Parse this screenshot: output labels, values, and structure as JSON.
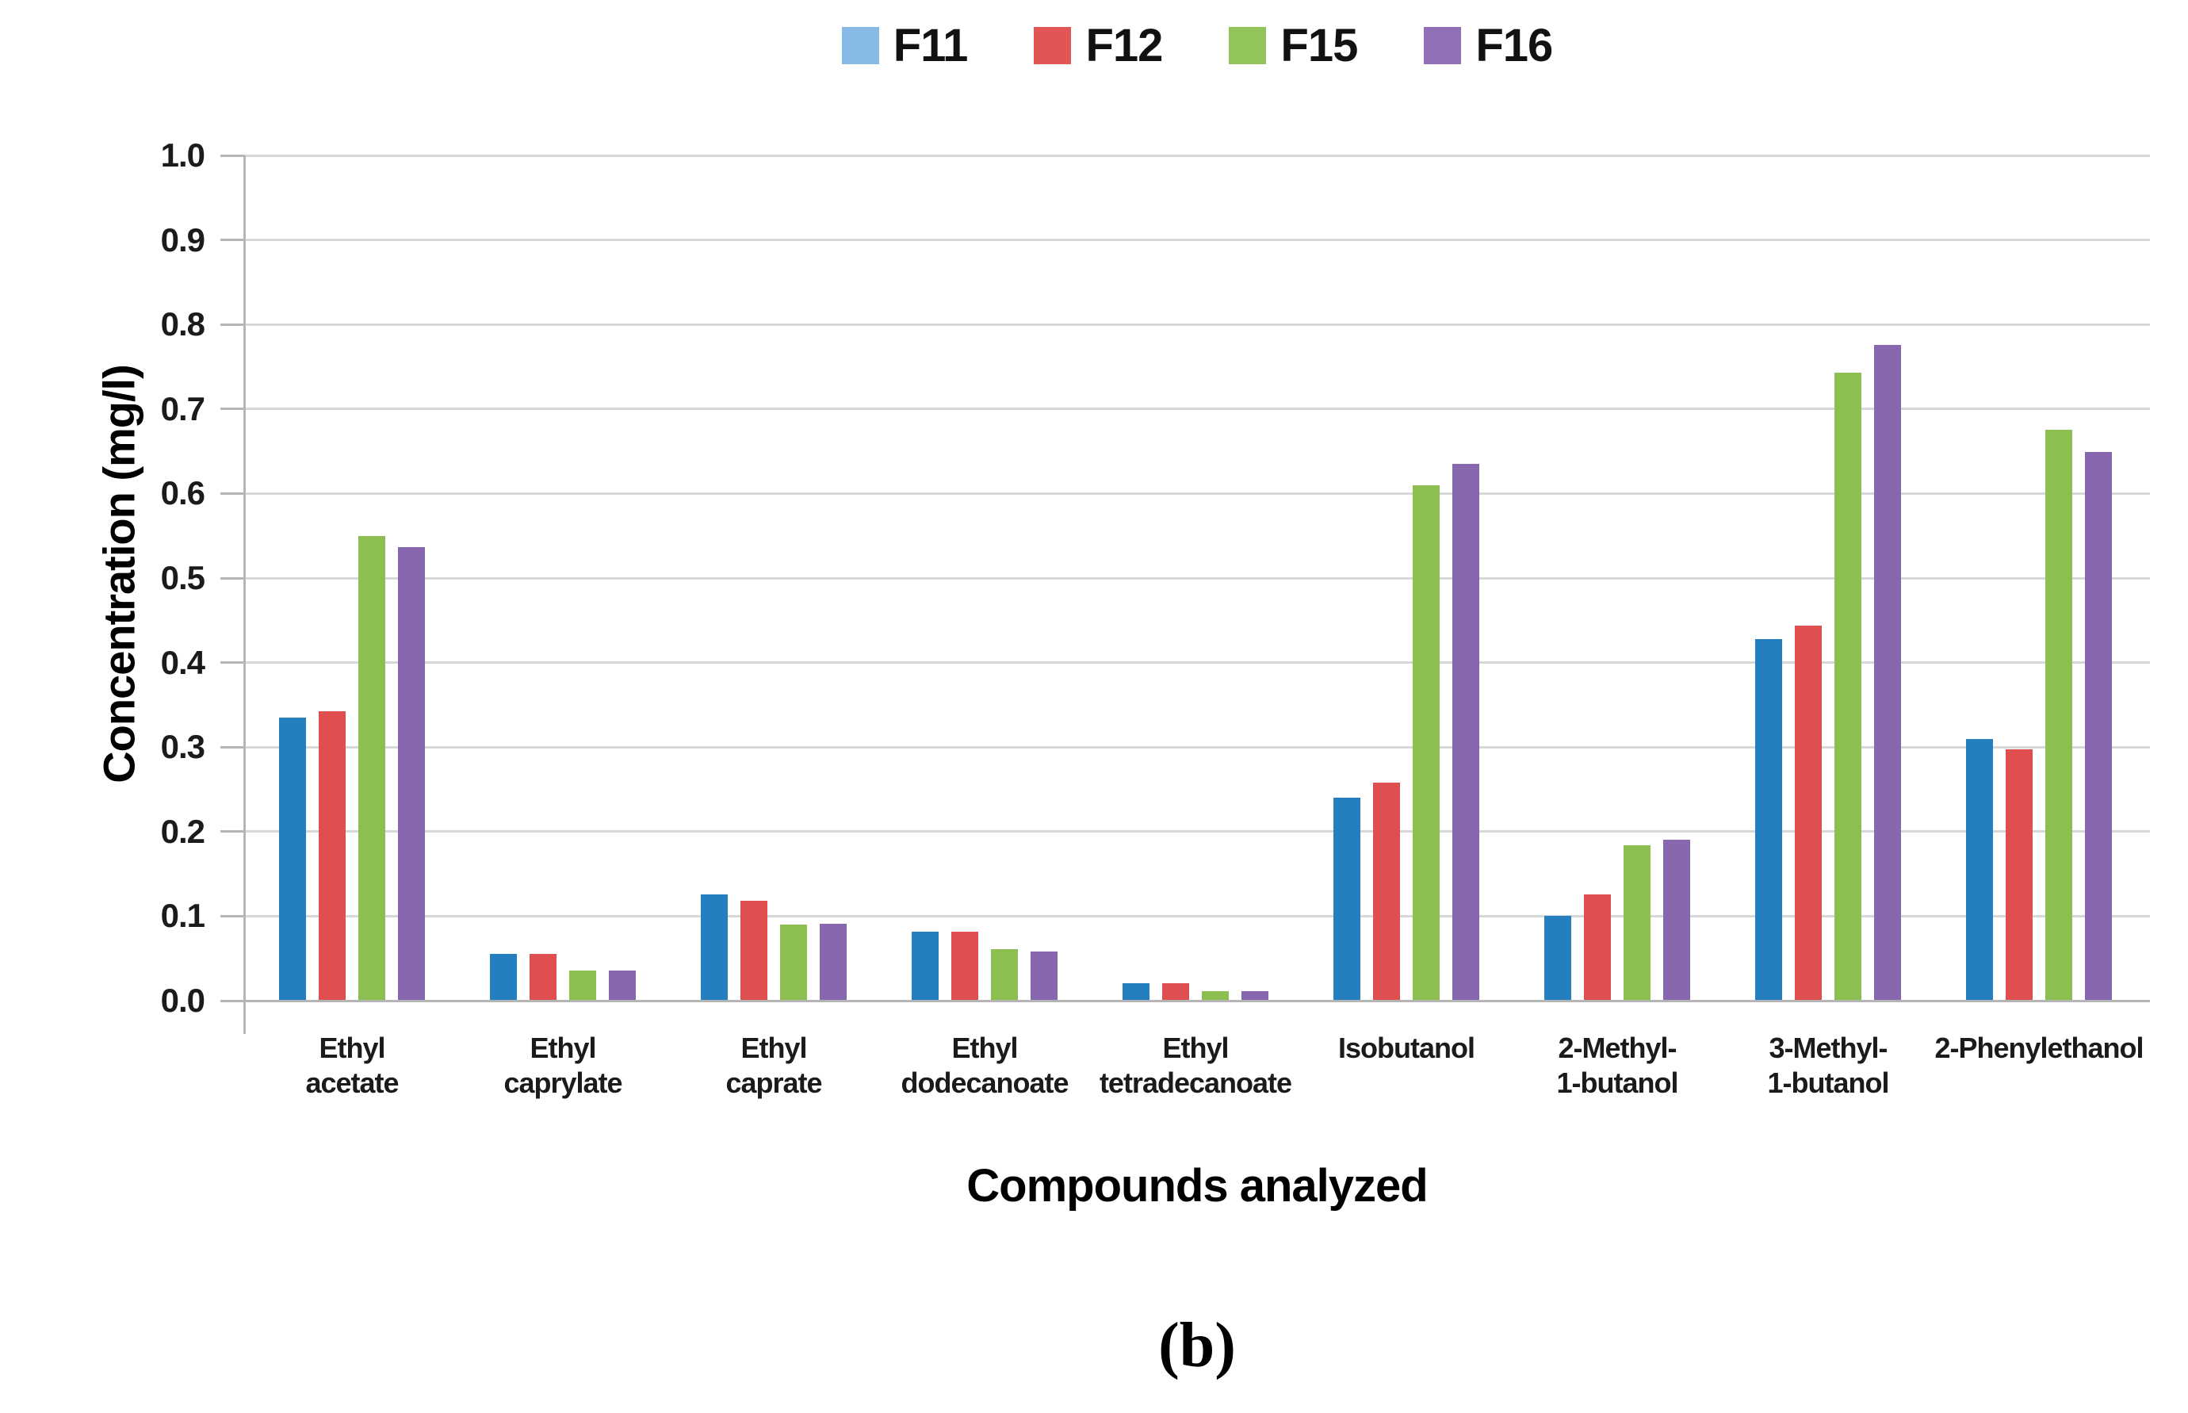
{
  "figure": {
    "caption": "(b)"
  },
  "chart_data": {
    "type": "bar",
    "title": "",
    "xlabel": "Compounds analyzed",
    "ylabel": "Concentration (mg/l)",
    "ylim": [
      0.0,
      1.0
    ],
    "ytick_step": 0.1,
    "grid": true,
    "legend_position": "top-center",
    "categories": [
      "Ethyl\nacetate",
      "Ethyl\ncaprylate",
      "Ethyl\ncaprate",
      "Ethyl\ndodecanoate",
      "Ethyl\ntetradecanoate",
      "Isobutanol",
      "2-Methyl-\n1-butanol",
      "3-Methyl-\n1-butanol",
      "2-Phenylethanol"
    ],
    "series": [
      {
        "name": "F11",
        "bar_color": "#257FBE",
        "legend_color": "#86B9E3",
        "values": [
          0.335,
          0.055,
          0.126,
          0.082,
          0.021,
          0.24,
          0.1,
          0.428,
          0.31
        ]
      },
      {
        "name": "F12",
        "bar_color": "#DF4F4F",
        "legend_color": "#E25555",
        "values": [
          0.342,
          0.055,
          0.118,
          0.082,
          0.021,
          0.258,
          0.126,
          0.444,
          0.297
        ]
      },
      {
        "name": "F15",
        "bar_color": "#8CBE52",
        "legend_color": "#93C45A",
        "values": [
          0.55,
          0.036,
          0.09,
          0.061,
          0.011,
          0.61,
          0.184,
          0.743,
          0.675
        ]
      },
      {
        "name": "F16",
        "bar_color": "#8767AD",
        "legend_color": "#8F6FB5",
        "values": [
          0.537,
          0.036,
          0.091,
          0.058,
          0.011,
          0.635,
          0.19,
          0.776,
          0.649
        ]
      }
    ],
    "colors": {
      "gridline": "#d8d8d8",
      "axis": "#b5b5b5",
      "text": "#1b1b1b"
    }
  }
}
